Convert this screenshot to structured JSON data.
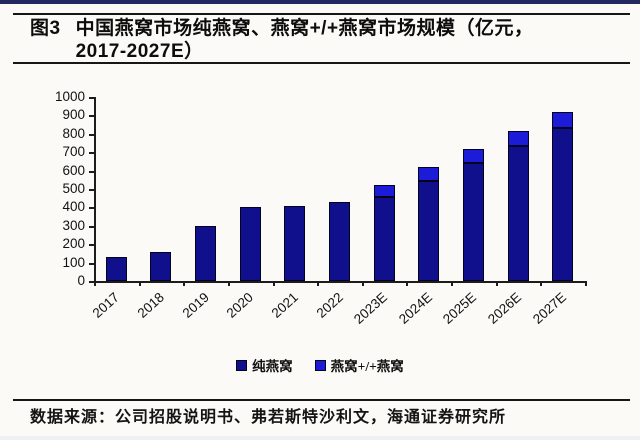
{
  "page": {
    "figure_label": "图3",
    "title_line1": "中国燕窝市场纯燕窝、燕窝+/+燕窝市场规模（亿元，",
    "title_line2": "2017-2027E）",
    "footer": "数据来源：公司招股说明书、弗若斯特沙利文，海通证券研究所"
  },
  "colors": {
    "top_band": "#232861",
    "pure_series": "#10108c",
    "plus_series": "#1b1bd8",
    "bar_outline": "#03031f",
    "axis": "#1c1c1c",
    "page_background": "#fbfaf6"
  },
  "chart_data": {
    "type": "bar",
    "stacked": true,
    "title": "中国燕窝市场纯燕窝、燕窝+/+燕窝市场规模（亿元，2017-2027E）",
    "unit": "亿元",
    "categories": [
      "2017",
      "2018",
      "2019",
      "2020",
      "2021",
      "2022",
      "2023E",
      "2024E",
      "2025E",
      "2026E",
      "2027E"
    ],
    "series": [
      {
        "name": "纯燕窝",
        "color": "#10108c",
        "values": [
          130,
          155,
          300,
          400,
          410,
          430,
          455,
          545,
          640,
          735,
          830
        ]
      },
      {
        "name": "燕窝+/+燕窝",
        "color": "#1b1bd8",
        "values": [
          0,
          0,
          0,
          0,
          0,
          0,
          65,
          75,
          75,
          80,
          90
        ]
      }
    ],
    "totals": [
      130,
      155,
      300,
      400,
      410,
      430,
      520,
      620,
      715,
      815,
      920
    ],
    "ylim": [
      0,
      1000
    ],
    "ytick_step": 100,
    "xlabel": "",
    "ylabel": "",
    "grid": false,
    "legend_position": "bottom"
  }
}
